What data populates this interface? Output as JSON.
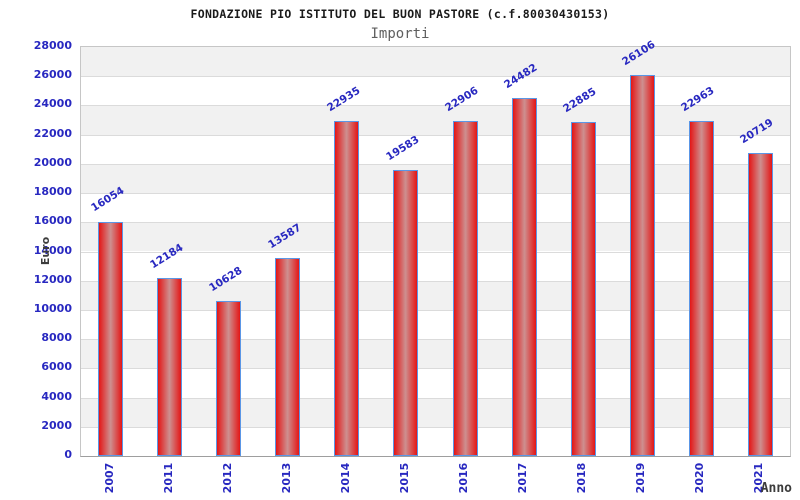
{
  "header": {
    "title": "FONDAZIONE PIO ISTITUTO DEL BUON PASTORE (c.f.80030430153)",
    "subtitle": "Importi"
  },
  "chart_data": {
    "type": "bar",
    "title": "FONDAZIONE PIO ISTITUTO DEL BUON PASTORE (c.f.80030430153)",
    "subtitle": "Importi",
    "categories": [
      "2007",
      "2011",
      "2012",
      "2013",
      "2014",
      "2015",
      "2016",
      "2017",
      "2018",
      "2019",
      "2020",
      "2021"
    ],
    "values": [
      16054,
      12184,
      10628,
      13587,
      22935,
      19583,
      22906,
      24482,
      22885,
      26106,
      22963,
      20719
    ],
    "xlabel": "Anno",
    "ylabel": "Euro",
    "ylim": [
      0,
      28000
    ],
    "ytick_step": 2000,
    "y_ticks": [
      0,
      2000,
      4000,
      6000,
      8000,
      10000,
      12000,
      14000,
      16000,
      18000,
      20000,
      22000,
      24000,
      26000,
      28000
    ],
    "grid": "alternating-horizontal-bands",
    "legend": "none",
    "bar_value_labels_rotated_deg": -32,
    "x_labels_rotated_deg": -90
  },
  "colors": {
    "label_blue": "#2828c0",
    "bar_edge_red": "#e41616",
    "bar_center": "#cd9090",
    "bar_border_blue": "#5a96e6",
    "band_gray": "#f1f1f1",
    "band_white": "#ffffff",
    "gridline": "#dbdbdb",
    "plot_border": "#c6c6c6",
    "axis_line": "#9e9e9e",
    "title_color": "#1a1a1a",
    "subtitle_color": "#5f5f5f",
    "axis_title_color": "#3c3c3c"
  }
}
